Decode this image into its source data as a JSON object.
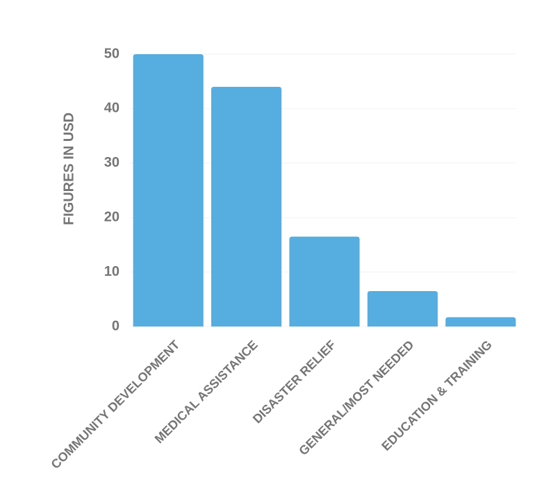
{
  "chart_data": {
    "type": "bar",
    "y_axis_label": "FIGURES IN USD",
    "categories": [
      "COMMUNITY DEVELOPMENT",
      "MEDICAL ASSISTANCE",
      "DISASTER RELIEF",
      "GENERAL/MOST NEEDED",
      "EDUCATION & TRAINING"
    ],
    "values": [
      50,
      44,
      16.5,
      6.5,
      1.7
    ],
    "color": "#55ade0",
    "ylim": [
      0,
      50
    ],
    "yticks": [
      0,
      10,
      20,
      30,
      40,
      50
    ],
    "grid": true
  }
}
